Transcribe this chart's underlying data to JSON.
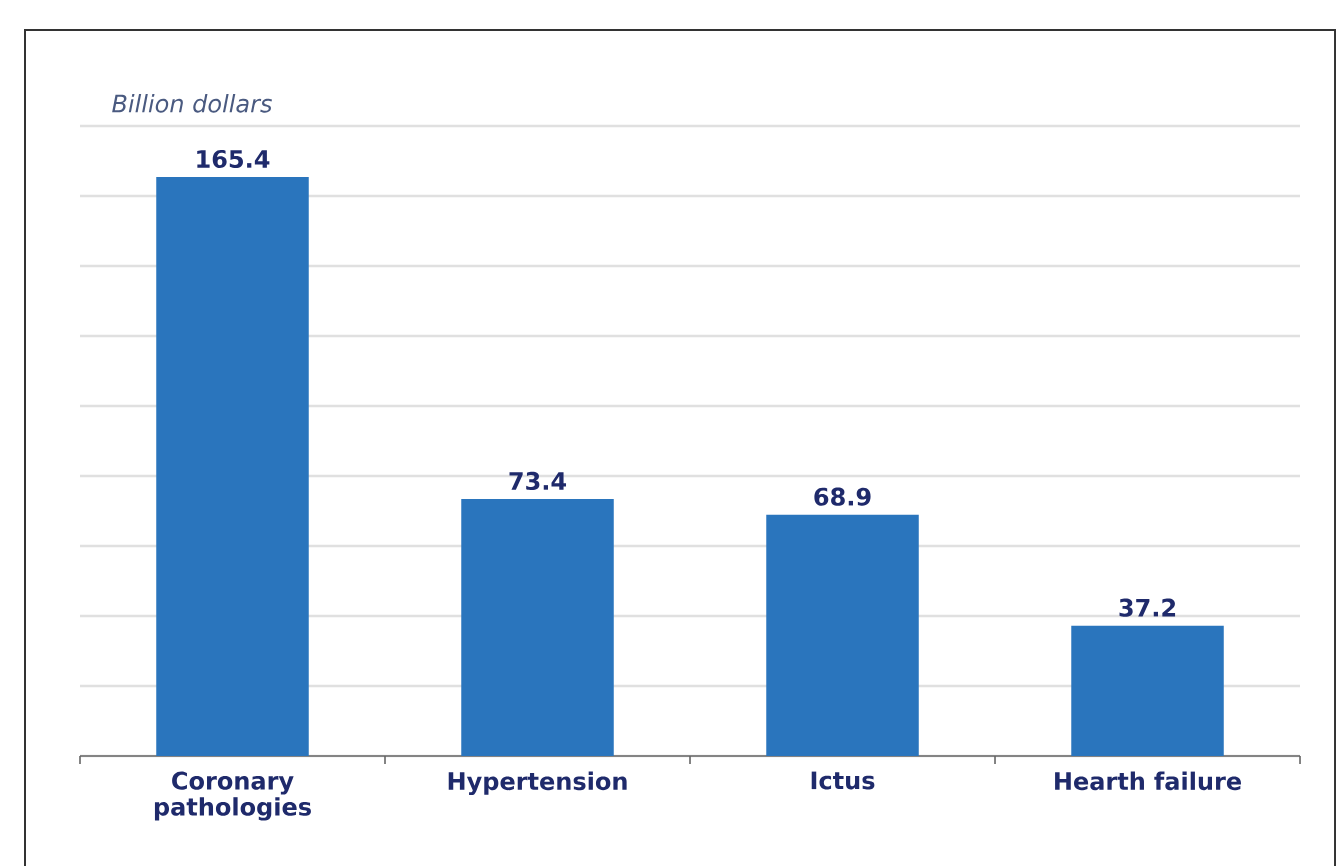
{
  "chart_data": {
    "type": "bar",
    "ylabel": "Billion dollars",
    "categories": [
      "Coronary pathologies",
      "Hypertension",
      "Ictus",
      "Hearth failure"
    ],
    "values": [
      165.4,
      73.4,
      68.9,
      37.2
    ],
    "color": "#2a75bd",
    "ylim": [
      0,
      180
    ],
    "yticks": [
      {
        "value": 0,
        "label": null
      },
      {
        "value": 20,
        "label": null
      },
      {
        "value": 40,
        "label": null
      },
      {
        "value": 60,
        "label": null
      },
      {
        "value": 80,
        "label": null
      },
      {
        "value": 100,
        "label": null
      },
      {
        "value": 120,
        "label": null
      },
      {
        "value": 140,
        "label": null
      },
      {
        "value": 160,
        "label": null
      },
      {
        "value": 180,
        "label": null
      }
    ],
    "grid": "y",
    "data_labels": true,
    "tick_labels": "x"
  }
}
